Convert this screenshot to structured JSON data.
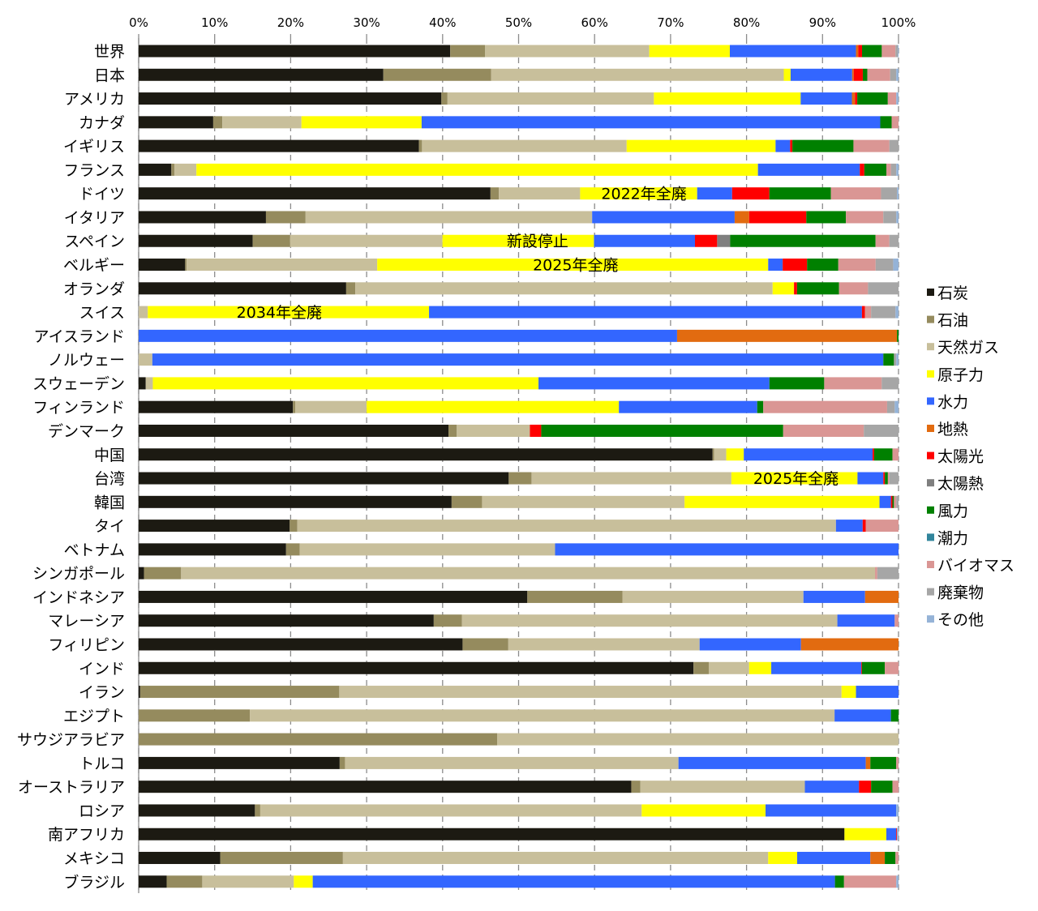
{
  "chart_data": {
    "type": "bar",
    "orientation": "horizontal",
    "stacked": "percent",
    "xlim": [
      0,
      100
    ],
    "xticks": [
      "0%",
      "10%",
      "20%",
      "30%",
      "40%",
      "50%",
      "60%",
      "70%",
      "80%",
      "90%",
      "100%"
    ],
    "grid": "vertical dashed",
    "legend_position": "right",
    "categories": [
      "世界",
      "日本",
      "アメリカ",
      "カナダ",
      "イギリス",
      "フランス",
      "ドイツ",
      "イタリア",
      "スペイン",
      "ベルギー",
      "オランダ",
      "スイス",
      "アイスランド",
      "ノルウェー",
      "スウェーデン",
      "フィンランド",
      "デンマーク",
      "中国",
      "台湾",
      "韓国",
      "タイ",
      "ベトナム",
      "シンガポール",
      "インドネシア",
      "マレーシア",
      "フィリピン",
      "インド",
      "イラン",
      "エジプト",
      "サウジアラビア",
      "トルコ",
      "オーストラリア",
      "ロシア",
      "南アフリカ",
      "メキシコ",
      "ブラジル"
    ],
    "series": [
      {
        "name": "石炭",
        "color": "#1c1a12",
        "values": [
          41,
          32.2,
          39.6,
          9.8,
          36.7,
          4.3,
          46.3,
          16.7,
          14.9,
          6.1,
          27.2,
          0,
          0,
          0,
          0.8,
          20.3,
          41.1,
          75.3,
          48.7,
          41.1,
          19.8,
          19.4,
          0.7,
          51.1,
          38.6,
          42.5,
          72.8,
          0.2,
          0,
          0,
          26.4,
          64.7,
          15.3,
          92.7,
          10.7,
          3.7
        ]
      },
      {
        "name": "石油",
        "color": "#958b5e",
        "values": [
          4.6,
          14.2,
          0.8,
          1.2,
          0.4,
          0.4,
          1.1,
          5.2,
          4.9,
          0.2,
          1.2,
          0,
          0,
          0,
          0,
          0.3,
          1.1,
          0.2,
          3,
          4,
          1,
          1.8,
          4.9,
          12.5,
          3.7,
          6,
          2,
          26.2,
          14.6,
          47.2,
          0.7,
          1.2,
          0.7,
          0,
          16.1,
          4.7
        ]
      },
      {
        "name": "天然ガス",
        "color": "#c8bf9b",
        "values": [
          21.6,
          38.5,
          27,
          10.4,
          26.8,
          2.9,
          10.7,
          37.6,
          19.9,
          25,
          54.7,
          1.2,
          0,
          1.8,
          0.8,
          9.4,
          9.7,
          1.6,
          26.3,
          26.6,
          70.6,
          33.6,
          91.6,
          23.8,
          49.1,
          25.1,
          5.3,
          66.1,
          76.8,
          52.8,
          43.8,
          21.6,
          50.2,
          0,
          55.8,
          12.1
        ]
      },
      {
        "name": "原子力",
        "color": "#ffff00",
        "values": [
          10.6,
          0.9,
          19.2,
          15.8,
          19.5,
          73.9,
          15.4,
          0,
          19.8,
          51.3,
          2.8,
          36.9,
          0,
          0,
          43.6,
          33.2,
          0,
          2.3,
          16.6,
          25.6,
          0,
          0,
          0,
          0,
          0,
          0,
          2.9,
          1.9,
          0,
          0,
          0,
          0,
          16.3,
          5.5,
          3.8,
          2.5
        ]
      },
      {
        "name": "水力",
        "color": "#3366ff",
        "values": [
          16.6,
          8.1,
          6.7,
          60.3,
          1.9,
          13.4,
          4.6,
          18.7,
          13.2,
          1.9,
          0,
          56.8,
          71,
          96.2,
          26.1,
          18.2,
          0,
          16.9,
          3.4,
          1.5,
          3.5,
          45.2,
          0,
          8.1,
          7.5,
          13.3,
          11.8,
          5.6,
          7.4,
          0,
          24.6,
          7.1,
          17.2,
          1.3,
          9.6,
          69
        ]
      },
      {
        "name": "地熱",
        "color": "#e26b10",
        "values": [
          0.3,
          0.2,
          0.4,
          0,
          0,
          0,
          0,
          1.9,
          0,
          0,
          0,
          0,
          29,
          0,
          0,
          0,
          0,
          0,
          0,
          0,
          0,
          0,
          0,
          4.4,
          0,
          12.8,
          0,
          0,
          0,
          0,
          0.6,
          0,
          0,
          0,
          1.9,
          0
        ]
      },
      {
        "name": "太陽光",
        "color": "#ff0000",
        "values": [
          0.5,
          1.2,
          0.3,
          0,
          0.3,
          0.6,
          4.9,
          7.5,
          2.9,
          3.2,
          0.4,
          0.4,
          0,
          0,
          0,
          0,
          1.5,
          0.2,
          0.2,
          0.2,
          0.4,
          0,
          0,
          0,
          0,
          0,
          0.1,
          0,
          0,
          0,
          0,
          1.6,
          0,
          0.1,
          0,
          0
        ]
      },
      {
        "name": "太陽熱",
        "color": "#7f7f7f",
        "values": [
          0,
          0,
          0,
          0,
          0,
          0,
          0,
          0,
          1.7,
          0,
          0,
          0,
          0,
          0,
          0,
          0,
          0,
          0,
          0,
          0,
          0,
          0,
          0,
          0,
          0,
          0,
          0,
          0,
          0,
          0,
          0,
          0,
          0,
          0,
          0,
          0
        ]
      },
      {
        "name": "風力",
        "color": "#008000",
        "values": [
          2.6,
          0.6,
          4,
          1.5,
          8,
          2.9,
          8.1,
          5.2,
          19,
          4.1,
          5.5,
          0,
          0.2,
          1.4,
          6.2,
          0.8,
          32.1,
          2.4,
          0.4,
          0.2,
          0,
          0,
          0,
          0,
          0,
          0,
          3,
          0,
          1,
          0,
          3.4,
          2.8,
          0,
          0,
          1.4,
          1.2
        ]
      },
      {
        "name": "潮力",
        "color": "#31859c",
        "values": [
          0,
          0,
          0,
          0,
          0,
          0,
          0,
          0,
          0,
          0,
          0,
          0,
          0,
          0,
          0,
          0,
          0,
          0,
          0,
          0,
          0,
          0,
          0,
          0,
          0,
          0,
          0,
          0,
          0,
          0,
          0,
          0,
          0,
          0,
          0,
          0
        ]
      },
      {
        "name": "バイオマス",
        "color": "#da9694",
        "values": [
          1.8,
          3,
          1.1,
          0.9,
          4.7,
          0.6,
          6.6,
          4.9,
          1.8,
          4.9,
          3.8,
          0.8,
          0,
          0,
          6.5,
          16.3,
          10.7,
          0.8,
          0.2,
          0.3,
          4.3,
          0,
          0.3,
          0,
          0.5,
          0,
          1.8,
          0,
          0,
          0,
          0.3,
          0.8,
          0,
          0,
          0.4,
          6.9
        ]
      },
      {
        "name": "廃棄物",
        "color": "#a6a6a6",
        "values": [
          0.3,
          0.8,
          0,
          0,
          1.2,
          0.7,
          2.1,
          1.7,
          1.2,
          2.3,
          4,
          3.2,
          0,
          0.3,
          1.9,
          1,
          4.6,
          0,
          1.2,
          0.3,
          0,
          0,
          2.8,
          0,
          0,
          0,
          0,
          0,
          0,
          0,
          0,
          0,
          0,
          0,
          0,
          0
        ]
      },
      {
        "name": "その他",
        "color": "#95b3d7",
        "values": [
          0.1,
          0.3,
          0.3,
          0,
          0,
          0.3,
          0.2,
          0.3,
          0,
          0.7,
          0,
          0.4,
          0,
          0.3,
          0,
          0.5,
          0,
          0,
          0,
          0,
          0,
          0,
          0,
          0,
          0,
          0,
          0,
          0,
          0,
          0,
          0,
          0,
          0.3,
          0.2,
          0,
          0.3
        ]
      }
    ],
    "annotations": [
      {
        "category": "ドイツ",
        "text": "2022年全廃",
        "x": 66.5
      },
      {
        "category": "スペイン",
        "text": "新設停止",
        "x": 52.5
      },
      {
        "category": "ベルギー",
        "text": "2025年全廃",
        "x": 57.5
      },
      {
        "category": "スイス",
        "text": "2034年全廃",
        "x": 18.5
      },
      {
        "category": "台湾",
        "text": "2025年全廃",
        "x": 86.5
      }
    ]
  }
}
